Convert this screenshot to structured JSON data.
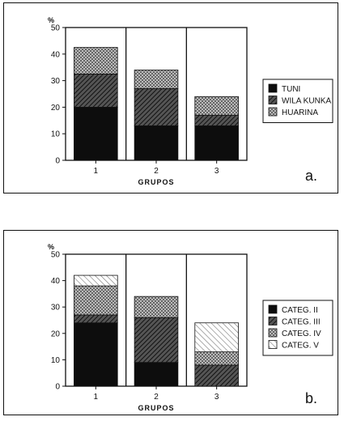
{
  "chart_data": [
    {
      "type": "bar",
      "stacked": true,
      "panel_label": "a.",
      "unit_label": "%",
      "xlabel": "GRUPOS",
      "categories": [
        "1",
        "2",
        "3"
      ],
      "ylim": [
        0,
        50
      ],
      "yticks": [
        0,
        10,
        20,
        30,
        40,
        50
      ],
      "legend_position": "right",
      "series": [
        {
          "name": "TUNI",
          "values": [
            20,
            13,
            13
          ],
          "pattern": "solid"
        },
        {
          "name": "WILA KUNKA",
          "values": [
            12.5,
            14,
            4
          ],
          "pattern": "hatch"
        },
        {
          "name": "HUARINA",
          "values": [
            10,
            7,
            7
          ],
          "pattern": "cross"
        }
      ]
    },
    {
      "type": "bar",
      "stacked": true,
      "panel_label": "b.",
      "unit_label": "%",
      "xlabel": "GRUPOS",
      "categories": [
        "1",
        "2",
        "3"
      ],
      "ylim": [
        0,
        50
      ],
      "yticks": [
        0,
        10,
        20,
        30,
        40,
        50
      ],
      "legend_position": "right",
      "series": [
        {
          "name": "CATEG. II",
          "values": [
            24,
            9,
            0
          ],
          "pattern": "solid"
        },
        {
          "name": "CATEG. III",
          "values": [
            3,
            17,
            8
          ],
          "pattern": "hatch"
        },
        {
          "name": "CATEG. IV",
          "values": [
            11,
            8,
            5
          ],
          "pattern": "cross"
        },
        {
          "name": "CATEG. V",
          "values": [
            4,
            0,
            11
          ],
          "pattern": "light"
        }
      ]
    }
  ]
}
